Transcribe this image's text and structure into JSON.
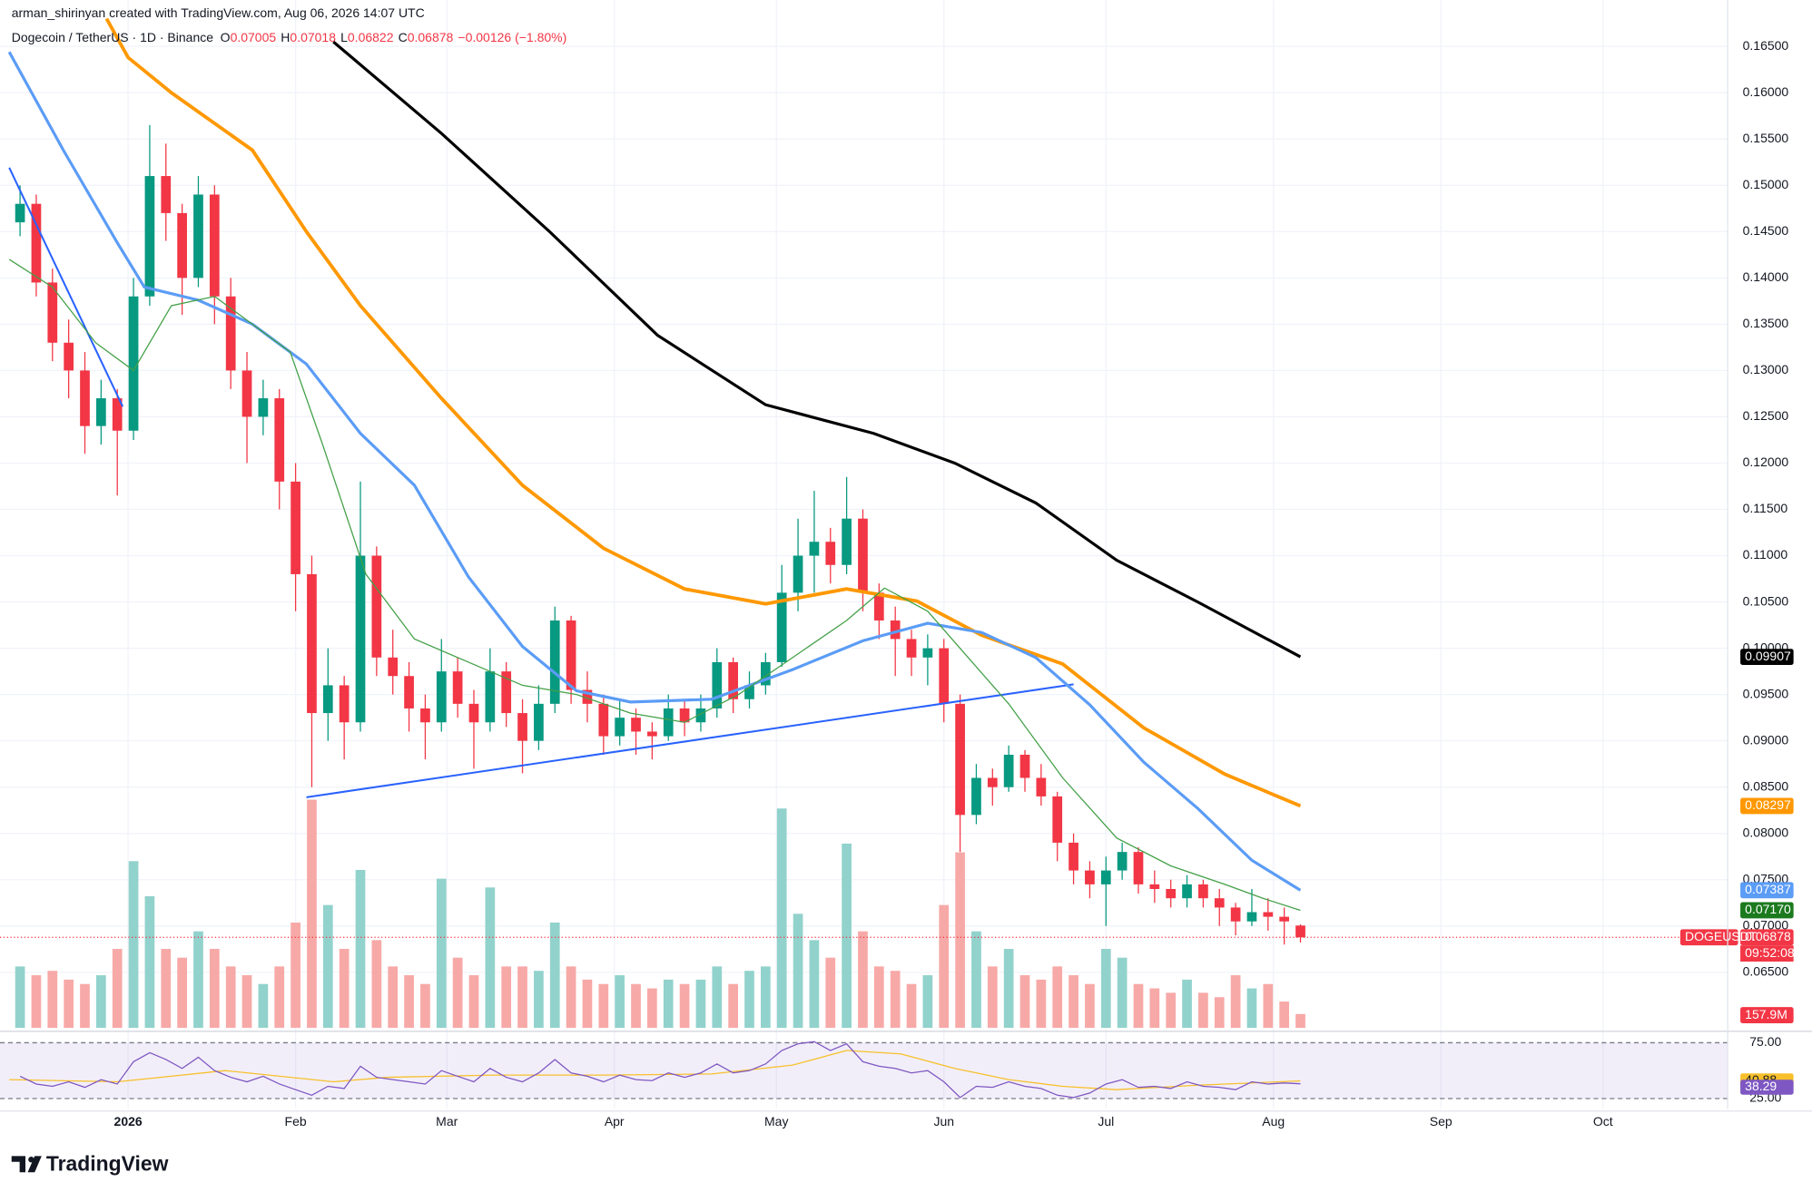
{
  "header": {
    "credit": "arman_shirinyan created with TradingView.com, Aug 06, 2026 14:07 UTC",
    "symbol": "Dogecoin / TetherUS · 1D · Binance",
    "ohlc_labels": [
      "O",
      "H",
      "L",
      "C"
    ],
    "change": "−0.00126 (−1.80%)"
  },
  "chart_data": {
    "type": "candlestick",
    "x": [
      2,
      5,
      8,
      11,
      14,
      17,
      20,
      23,
      26,
      29,
      32,
      35,
      38,
      41,
      44,
      47,
      50,
      53,
      56,
      59,
      62,
      65,
      68,
      71,
      74,
      77,
      80,
      83,
      86,
      89,
      92,
      95,
      98,
      101,
      104,
      107,
      110,
      113,
      116,
      119,
      122,
      125,
      128,
      131,
      134,
      137,
      140,
      143,
      146,
      149,
      152,
      155,
      158,
      161,
      164,
      167,
      170,
      173,
      176,
      179,
      182,
      185,
      188,
      191,
      194,
      197,
      200,
      203,
      206,
      209,
      212,
      215,
      218,
      221,
      224,
      227,
      230,
      233,
      236,
      239
    ],
    "ohlc": [
      [
        0.146,
        0.15,
        0.1445,
        0.148
      ],
      [
        0.148,
        0.149,
        0.138,
        0.1395
      ],
      [
        0.1395,
        0.141,
        0.131,
        0.133
      ],
      [
        0.133,
        0.1355,
        0.127,
        0.13
      ],
      [
        0.13,
        0.132,
        0.121,
        0.124
      ],
      [
        0.124,
        0.129,
        0.122,
        0.127
      ],
      [
        0.127,
        0.128,
        0.1165,
        0.1235
      ],
      [
        0.1235,
        0.14,
        0.1225,
        0.138
      ],
      [
        0.138,
        0.1565,
        0.137,
        0.151
      ],
      [
        0.151,
        0.1545,
        0.144,
        0.147
      ],
      [
        0.147,
        0.148,
        0.136,
        0.14
      ],
      [
        0.14,
        0.151,
        0.139,
        0.149
      ],
      [
        0.149,
        0.15,
        0.135,
        0.138
      ],
      [
        0.138,
        0.14,
        0.128,
        0.13
      ],
      [
        0.13,
        0.132,
        0.12,
        0.125
      ],
      [
        0.125,
        0.129,
        0.123,
        0.127
      ],
      [
        0.127,
        0.128,
        0.115,
        0.118
      ],
      [
        0.118,
        0.12,
        0.104,
        0.108
      ],
      [
        0.108,
        0.11,
        0.085,
        0.093
      ],
      [
        0.093,
        0.1,
        0.09,
        0.096
      ],
      [
        0.096,
        0.097,
        0.088,
        0.092
      ],
      [
        0.092,
        0.118,
        0.091,
        0.11
      ],
      [
        0.11,
        0.111,
        0.097,
        0.099
      ],
      [
        0.099,
        0.102,
        0.095,
        0.097
      ],
      [
        0.097,
        0.0985,
        0.091,
        0.0935
      ],
      [
        0.0935,
        0.095,
        0.088,
        0.092
      ],
      [
        0.092,
        0.101,
        0.091,
        0.0975
      ],
      [
        0.0975,
        0.099,
        0.0925,
        0.094
      ],
      [
        0.094,
        0.0955,
        0.087,
        0.092
      ],
      [
        0.092,
        0.1,
        0.091,
        0.0975
      ],
      [
        0.0975,
        0.0985,
        0.0915,
        0.093
      ],
      [
        0.093,
        0.0945,
        0.0865,
        0.09
      ],
      [
        0.09,
        0.096,
        0.089,
        0.094
      ],
      [
        0.094,
        0.1045,
        0.093,
        0.103
      ],
      [
        0.103,
        0.1035,
        0.094,
        0.0955
      ],
      [
        0.0955,
        0.0975,
        0.092,
        0.094
      ],
      [
        0.094,
        0.095,
        0.0885,
        0.0905
      ],
      [
        0.0905,
        0.0945,
        0.0895,
        0.0925
      ],
      [
        0.0925,
        0.0935,
        0.0885,
        0.091
      ],
      [
        0.091,
        0.092,
        0.088,
        0.0905
      ],
      [
        0.0905,
        0.095,
        0.09,
        0.0935
      ],
      [
        0.0935,
        0.0945,
        0.0905,
        0.092
      ],
      [
        0.092,
        0.095,
        0.091,
        0.0935
      ],
      [
        0.0935,
        0.1,
        0.0925,
        0.0985
      ],
      [
        0.0985,
        0.099,
        0.093,
        0.0945
      ],
      [
        0.0945,
        0.0975,
        0.0935,
        0.096
      ],
      [
        0.096,
        0.0995,
        0.095,
        0.0985
      ],
      [
        0.0985,
        0.109,
        0.098,
        0.106
      ],
      [
        0.106,
        0.114,
        0.104,
        0.11
      ],
      [
        0.11,
        0.117,
        0.106,
        0.1115
      ],
      [
        0.1115,
        0.113,
        0.107,
        0.109
      ],
      [
        0.109,
        0.1185,
        0.108,
        0.114
      ],
      [
        0.114,
        0.115,
        0.104,
        0.106
      ],
      [
        0.106,
        0.107,
        0.101,
        0.103
      ],
      [
        0.103,
        0.1045,
        0.097,
        0.101
      ],
      [
        0.101,
        0.102,
        0.097,
        0.099
      ],
      [
        0.099,
        0.1015,
        0.096,
        0.1
      ],
      [
        0.1,
        0.101,
        0.092,
        0.094
      ],
      [
        0.094,
        0.095,
        0.078,
        0.082
      ],
      [
        0.082,
        0.0875,
        0.081,
        0.086
      ],
      [
        0.086,
        0.087,
        0.083,
        0.085
      ],
      [
        0.085,
        0.0895,
        0.0845,
        0.0885
      ],
      [
        0.0885,
        0.089,
        0.0845,
        0.086
      ],
      [
        0.086,
        0.0875,
        0.083,
        0.084
      ],
      [
        0.084,
        0.0845,
        0.077,
        0.079
      ],
      [
        0.079,
        0.08,
        0.0745,
        0.076
      ],
      [
        0.076,
        0.077,
        0.073,
        0.0745
      ],
      [
        0.0745,
        0.0775,
        0.07,
        0.076
      ],
      [
        0.076,
        0.079,
        0.075,
        0.078
      ],
      [
        0.078,
        0.0785,
        0.0735,
        0.0745
      ],
      [
        0.0745,
        0.076,
        0.0725,
        0.074
      ],
      [
        0.074,
        0.075,
        0.072,
        0.073
      ],
      [
        0.073,
        0.0755,
        0.072,
        0.0745
      ],
      [
        0.0745,
        0.075,
        0.072,
        0.073
      ],
      [
        0.073,
        0.074,
        0.07,
        0.072
      ],
      [
        0.072,
        0.0725,
        0.069,
        0.0705
      ],
      [
        0.0705,
        0.074,
        0.07,
        0.0715
      ],
      [
        0.0715,
        0.073,
        0.0695,
        0.071
      ],
      [
        0.071,
        0.072,
        0.068,
        0.0705
      ],
      [
        0.07005,
        0.07018,
        0.06822,
        0.06878
      ]
    ],
    "volume": [
      700,
      600,
      650,
      550,
      500,
      600,
      900,
      1900,
      1500,
      900,
      800,
      1100,
      900,
      700,
      600,
      500,
      700,
      1200,
      2600,
      1400,
      900,
      1800,
      1000,
      700,
      600,
      500,
      1700,
      800,
      600,
      1600,
      700,
      700,
      650,
      1200,
      700,
      550,
      500,
      600,
      500,
      450,
      550,
      500,
      550,
      700,
      500,
      650,
      700,
      2500,
      1300,
      1000,
      800,
      2100,
      1100,
      700,
      650,
      500,
      600,
      1400,
      2000,
      1100,
      700,
      900,
      600,
      550,
      700,
      600,
      500,
      900,
      800,
      500,
      450,
      400,
      550,
      400,
      350,
      600,
      450,
      500,
      300,
      157.9
    ],
    "volume_last_label": "157.9M",
    "volume_lim": [
      0,
      3000
    ],
    "xlim": [
      0,
      317
    ],
    "ylim": [
      0.059,
      0.169
    ],
    "yticks": [
      {
        "value": 0.065,
        "label": "0.06500"
      },
      {
        "value": 0.07,
        "label": "0.07000"
      },
      {
        "value": 0.075,
        "label": "0.07500"
      },
      {
        "value": 0.08,
        "label": "0.08000"
      },
      {
        "value": 0.085,
        "label": "0.08500"
      },
      {
        "value": 0.09,
        "label": "0.09000"
      },
      {
        "value": 0.095,
        "label": "0.09500"
      },
      {
        "value": 0.1,
        "label": "0.10000"
      },
      {
        "value": 0.105,
        "label": "0.10500"
      },
      {
        "value": 0.11,
        "label": "0.11000"
      },
      {
        "value": 0.115,
        "label": "0.11500"
      },
      {
        "value": 0.12,
        "label": "0.12000"
      },
      {
        "value": 0.125,
        "label": "0.12500"
      },
      {
        "value": 0.13,
        "label": "0.13000"
      },
      {
        "value": 0.135,
        "label": "0.13500"
      },
      {
        "value": 0.14,
        "label": "0.14000"
      },
      {
        "value": 0.145,
        "label": "0.14500"
      },
      {
        "value": 0.15,
        "label": "0.15000"
      },
      {
        "value": 0.155,
        "label": "0.15500"
      },
      {
        "value": 0.16,
        "label": "0.16000"
      },
      {
        "value": 0.165,
        "label": "0.16500"
      }
    ],
    "xticks": [
      {
        "value": 22,
        "label": "2026"
      },
      {
        "value": 53,
        "label": "Feb"
      },
      {
        "value": 81,
        "label": "Mar"
      },
      {
        "value": 112,
        "label": "Apr"
      },
      {
        "value": 142,
        "label": "May"
      },
      {
        "value": 173,
        "label": "Jun"
      },
      {
        "value": 203,
        "label": "Jul"
      },
      {
        "value": 234,
        "label": "Aug"
      },
      {
        "value": 265,
        "label": "Sep"
      },
      {
        "value": 295,
        "label": "Oct"
      }
    ],
    "grid": true,
    "up_color": "#089981",
    "down_color": "#f23645",
    "volume_up_color": "#92d2cc",
    "volume_down_color": "#f7a9a7",
    "moving_averages": [
      {
        "color": "#000000",
        "width": 2.5,
        "x": [
          60,
          80,
          100,
          120,
          140,
          160,
          175,
          190,
          205,
          220,
          239
        ],
        "values": [
          0.1655,
          0.1556,
          0.145,
          0.1338,
          0.1263,
          0.1232,
          0.12,
          0.1157,
          0.1095,
          0.105,
          0.09907
        ]
      },
      {
        "color": "#ff9800",
        "width": 3,
        "x": [
          18,
          22,
          30,
          45,
          55,
          65,
          80,
          95,
          110,
          125,
          140,
          155,
          168,
          180,
          195,
          210,
          225,
          239
        ],
        "values": [
          0.168,
          0.1638,
          0.16,
          0.1538,
          0.145,
          0.137,
          0.127,
          0.1176,
          0.1108,
          0.1064,
          0.1048,
          0.1064,
          0.1051,
          0.1014,
          0.0983,
          0.0914,
          0.0864,
          0.08297
        ]
      },
      {
        "color": "#5b9cf6",
        "width": 2.5,
        "x": [
          0,
          10,
          20,
          25,
          35,
          45,
          55,
          65,
          75,
          85,
          95,
          105,
          115,
          130,
          145,
          158,
          170,
          180,
          190,
          200,
          210,
          220,
          230,
          239
        ],
        "values": [
          0.1644,
          0.1538,
          0.1438,
          0.139,
          0.1376,
          0.135,
          0.1307,
          0.1232,
          0.1176,
          0.1077,
          0.1002,
          0.0954,
          0.0942,
          0.0945,
          0.0977,
          0.1008,
          0.1027,
          0.1017,
          0.099,
          0.0939,
          0.0877,
          0.0827,
          0.0771,
          0.07387
        ]
      },
      {
        "color": "#43a047",
        "width": 1,
        "x": [
          0,
          8,
          16,
          23,
          30,
          38,
          45,
          52,
          58,
          66,
          75,
          85,
          95,
          105,
          115,
          125,
          135,
          145,
          155,
          162,
          170,
          176,
          185,
          195,
          205,
          215,
          225,
          232,
          239
        ],
        "values": [
          0.142,
          0.139,
          0.133,
          0.13,
          0.137,
          0.138,
          0.135,
          0.132,
          0.122,
          0.108,
          0.101,
          0.0985,
          0.096,
          0.095,
          0.093,
          0.092,
          0.095,
          0.099,
          0.103,
          0.1065,
          0.104,
          0.1,
          0.094,
          0.086,
          0.0795,
          0.0765,
          0.0745,
          0.073,
          0.0717
        ],
        "last_label": "0.07170",
        "label_color": "#1b7a1e"
      }
    ],
    "trendlines": [
      {
        "color": "#2962ff",
        "x": [
          0,
          21
        ],
        "values": [
          0.1519,
          0.1261
        ]
      },
      {
        "color": "#2962ff",
        "x": [
          55,
          197
        ],
        "values": [
          0.0839,
          0.0961
        ]
      }
    ],
    "symbol_label": "DOGEUSDT",
    "countdown": "09:52:08",
    "rsi": {
      "color": "#7e57c2",
      "x": [
        2,
        5,
        8,
        11,
        14,
        17,
        20,
        23,
        26,
        29,
        32,
        35,
        38,
        41,
        44,
        47,
        50,
        53,
        56,
        59,
        62,
        65,
        68,
        71,
        74,
        77,
        80,
        83,
        86,
        89,
        92,
        95,
        98,
        101,
        104,
        107,
        110,
        113,
        116,
        119,
        122,
        125,
        128,
        131,
        134,
        137,
        140,
        143,
        146,
        149,
        152,
        155,
        158,
        161,
        164,
        167,
        170,
        173,
        176,
        179,
        182,
        185,
        188,
        191,
        194,
        197,
        200,
        203,
        206,
        209,
        212,
        215,
        218,
        221,
        224,
        227,
        230,
        233,
        236,
        239
      ],
      "values": [
        45,
        38,
        36,
        40,
        35,
        42,
        38,
        58,
        66,
        60,
        52,
        62,
        50,
        44,
        40,
        45,
        38,
        33,
        28,
        36,
        34,
        54,
        44,
        42,
        40,
        38,
        50,
        45,
        40,
        52,
        44,
        40,
        48,
        60,
        48,
        45,
        40,
        46,
        42,
        41,
        48,
        44,
        48,
        56,
        48,
        50,
        56,
        68,
        74,
        76,
        68,
        74,
        58,
        54,
        52,
        48,
        50,
        40,
        26,
        36,
        35,
        40,
        36,
        34,
        28,
        26,
        30,
        38,
        42,
        35,
        36,
        34,
        40,
        36,
        35,
        33,
        40,
        38,
        39,
        38.29
      ],
      "ma": {
        "color": "#f7c02b",
        "x": [
          0,
          20,
          40,
          60,
          70,
          90,
          110,
          130,
          145,
          155,
          165,
          175,
          185,
          195,
          205,
          220,
          239
        ],
        "values": [
          42,
          40,
          50,
          40,
          44,
          46,
          46,
          47,
          55,
          68,
          65,
          52,
          42,
          36,
          33,
          37,
          40.88
        ]
      },
      "ylim": [
        18,
        80
      ],
      "yticks": [
        {
          "value": 75,
          "label": "75.00"
        },
        {
          "value": 25,
          "label": "25.00"
        }
      ]
    }
  },
  "brand": "TradingView"
}
